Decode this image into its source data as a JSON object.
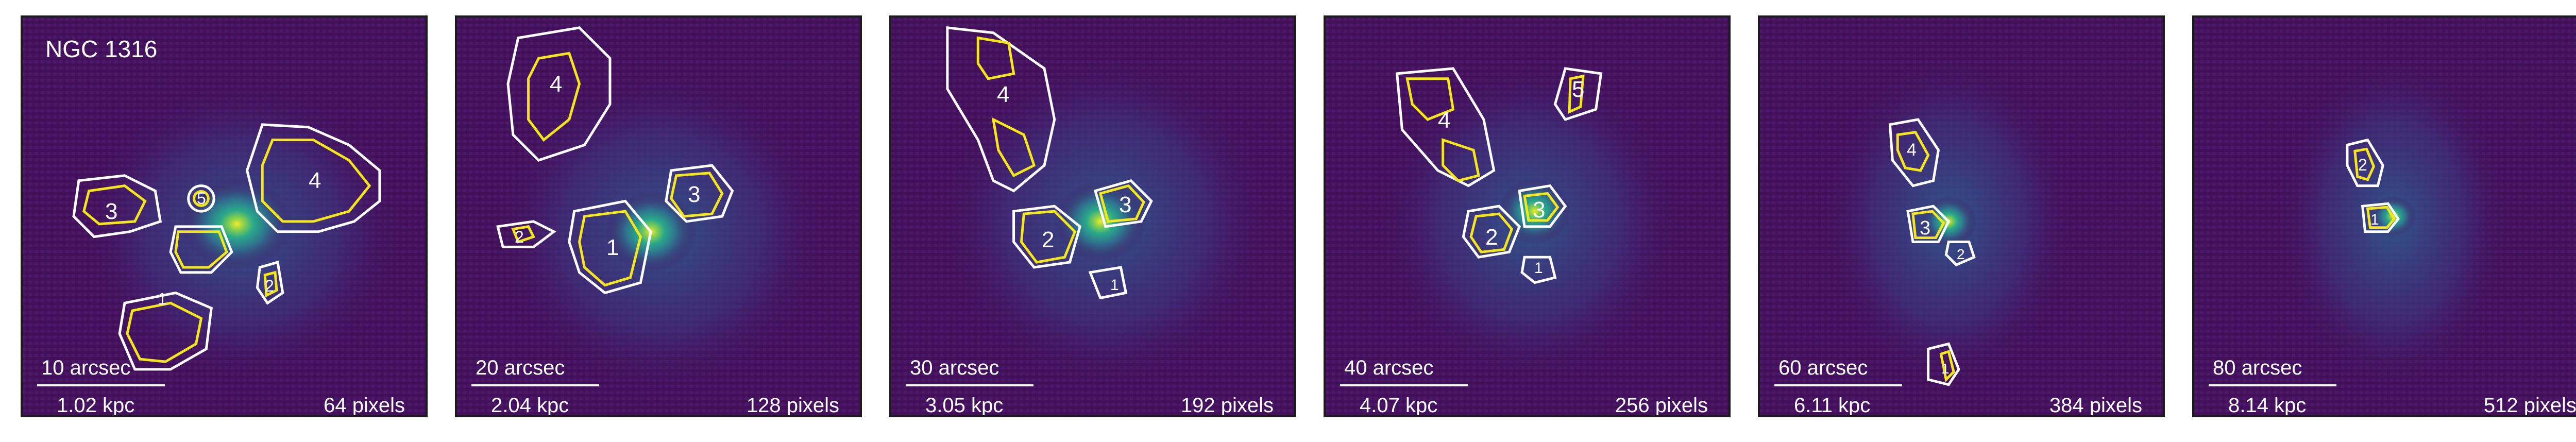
{
  "galaxy": "NGC 1316",
  "colors": {
    "background_dark": "#46105c",
    "background_mid": "#3d4b8a",
    "core_bright": "#f2e52a",
    "halo_green": "#2aa98a",
    "contour_outer": "#ffffff",
    "contour_inner": "#f5e61b",
    "frame": "#1a1a1a"
  },
  "panels": [
    {
      "arcsec": "10 arcsec",
      "kpc": "1.02 kpc",
      "pixels": "64 pixels",
      "regions": [
        "4",
        "3",
        "5",
        "1",
        "2"
      ]
    },
    {
      "arcsec": "20 arcsec",
      "kpc": "2.04 kpc",
      "pixels": "128 pixels",
      "regions": [
        "4",
        "3",
        "2",
        "1"
      ]
    },
    {
      "arcsec": "30 arcsec",
      "kpc": "3.05 kpc",
      "pixels": "192 pixels",
      "regions": [
        "4",
        "3",
        "2",
        "1"
      ]
    },
    {
      "arcsec": "40 arcsec",
      "kpc": "4.07 kpc",
      "pixels": "256 pixels",
      "regions": [
        "5",
        "4",
        "3",
        "2",
        "1"
      ]
    },
    {
      "arcsec": "60 arcsec",
      "kpc": "6.11 kpc",
      "pixels": "384 pixels",
      "regions": [
        "4",
        "3",
        "2",
        "1"
      ]
    },
    {
      "arcsec": "80 arcsec",
      "kpc": "8.14 kpc",
      "pixels": "512 pixels",
      "regions": [
        "2",
        "1"
      ]
    }
  ]
}
